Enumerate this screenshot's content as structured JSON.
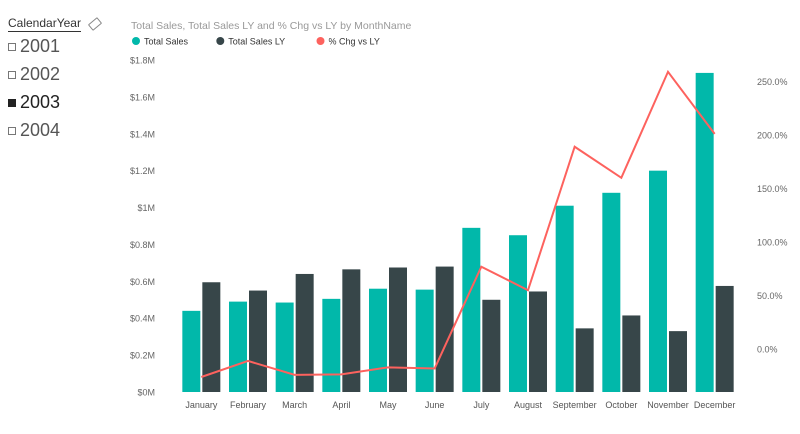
{
  "slicer": {
    "title": "CalendarYear",
    "items": [
      {
        "label": "2001",
        "checked": false
      },
      {
        "label": "2002",
        "checked": false
      },
      {
        "label": "2003",
        "checked": true
      },
      {
        "label": "2004",
        "checked": false
      }
    ]
  },
  "chart_data": {
    "type": "bar",
    "title": "Total Sales, Total Sales LY and % Chg vs LY by MonthName",
    "categories": [
      "January",
      "February",
      "March",
      "April",
      "May",
      "June",
      "July",
      "August",
      "September",
      "October",
      "November",
      "December"
    ],
    "series": [
      {
        "name": "Total Sales",
        "type": "bar",
        "axis": "left",
        "color": "#01B8AA",
        "values": [
          0.44,
          0.49,
          0.485,
          0.505,
          0.56,
          0.555,
          0.89,
          0.85,
          1.01,
          1.08,
          1.2,
          1.73
        ]
      },
      {
        "name": "Total Sales LY",
        "type": "bar",
        "axis": "left",
        "color": "#374649",
        "values": [
          0.595,
          0.55,
          0.64,
          0.665,
          0.675,
          0.68,
          0.5,
          0.545,
          0.345,
          0.415,
          0.33,
          0.575
        ]
      },
      {
        "name": "% Chg vs LY",
        "type": "line",
        "axis": "right",
        "color": "#FD625E",
        "values": [
          -26,
          -11,
          -24,
          -23.5,
          -17,
          -18,
          77,
          55,
          189,
          160,
          259,
          201
        ]
      }
    ],
    "y_left": {
      "min": 0,
      "max": 1.8,
      "ticks": [
        0,
        0.2,
        0.4,
        0.6,
        0.8,
        1,
        1.2,
        1.4,
        1.6,
        1.8
      ],
      "tick_labels": [
        "$0M",
        "$0.2M",
        "$0.4M",
        "$0.6M",
        "$0.8M",
        "$1M",
        "$1.2M",
        "$1.4M",
        "$1.6M",
        "$1.8M"
      ]
    },
    "y_right": {
      "min": -40,
      "max": 270,
      "ticks": [
        0,
        50,
        100,
        150,
        200,
        250
      ],
      "tick_labels": [
        "0.0%",
        "50.0%",
        "100.0%",
        "150.0%",
        "200.0%",
        "250.0%"
      ]
    },
    "legend_position": "top-left",
    "grid": false,
    "xlabel": "",
    "ylabel": ""
  }
}
